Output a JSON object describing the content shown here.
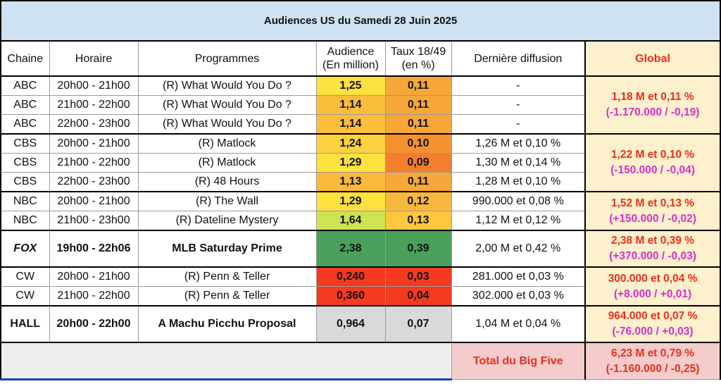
{
  "title": "Audiences US du Samedi 28 Juin 2025",
  "headers": {
    "channel": "Chaine",
    "time": "Horaire",
    "program": "Programmes",
    "audience_line1": "Audience",
    "audience_line2": "(En million)",
    "rate_line1": "Taux 18/49",
    "rate_line2": "(en %)",
    "last": "Dernière diffusion",
    "global": "Global"
  },
  "rows": [
    {
      "channel": "ABC",
      "time": "20h00 - 21h00",
      "program": "(R) What Would You Do ?",
      "audience": "1,25",
      "rate": "0,11",
      "last": "-"
    },
    {
      "channel": "ABC",
      "time": "21h00 - 22h00",
      "program": "(R) What Would You Do ?",
      "audience": "1,14",
      "rate": "0,11",
      "last": "-"
    },
    {
      "channel": "ABC",
      "time": "22h00 - 23h00",
      "program": "(R) What Would You Do ?",
      "audience": "1,14",
      "rate": "0,11",
      "last": "-"
    },
    {
      "channel": "CBS",
      "time": "20h00 - 21h00",
      "program": "(R) Matlock",
      "audience": "1,24",
      "rate": "0,10",
      "last": "1,26 M et 0,10 %"
    },
    {
      "channel": "CBS",
      "time": "21h00 - 22h00",
      "program": "(R) Matlock",
      "audience": "1,29",
      "rate": "0,09",
      "last": "1,30 M et 0,14 %"
    },
    {
      "channel": "CBS",
      "time": "22h00 - 23h00",
      "program": "(R) 48 Hours",
      "audience": "1,13",
      "rate": "0,11",
      "last": "1,28 M et 0,10 %"
    },
    {
      "channel": "NBC",
      "time": "20h00 - 21h00",
      "program": "(R) The Wall",
      "audience": "1,29",
      "rate": "0,12",
      "last": "990.000 et 0,08 %"
    },
    {
      "channel": "NBC",
      "time": "21h00 - 23h00",
      "program": "(R) Dateline Mystery",
      "audience": "1,64",
      "rate": "0,13",
      "last": "1,12 M et 0,12 %"
    },
    {
      "channel": "FOX",
      "time": "19h00 - 22h06",
      "program": "MLB Saturday Prime",
      "audience": "2,38",
      "rate": "0,39",
      "last": "2,00 M et 0,42 %"
    },
    {
      "channel": "CW",
      "time": "20h00 - 21h00",
      "program": "(R) Penn & Teller",
      "audience": "0,240",
      "rate": "0,03",
      "last": "281.000 et 0,03 %"
    },
    {
      "channel": "CW",
      "time": "21h00 - 22h00",
      "program": "(R) Penn & Teller",
      "audience": "0,360",
      "rate": "0,04",
      "last": "302.000 et 0,03 %"
    },
    {
      "channel": "HALL",
      "time": "20h00 - 22h00",
      "program": "A Machu Picchu Proposal",
      "audience": "0,964",
      "rate": "0,07",
      "last": "1,04 M et 0,04 %"
    }
  ],
  "global": {
    "abc": {
      "line1": "1,18 M et 0,11 %",
      "line2": "(-1.170.000 / -0,19)"
    },
    "cbs": {
      "line1": "1,22 M et 0,10 %",
      "line2": "(-150.000 / -0,04)"
    },
    "nbc": {
      "line1": "1,52 M et 0,13 %",
      "line2": "(+150.000 / -0,02)"
    },
    "fox": {
      "line1": "2,38 M et 0,39 %",
      "line2": "(+370.000 / -0,03)"
    },
    "cw": {
      "line1": "300.000 et 0,04 %",
      "line2": "(+8.000 / +0,01)"
    },
    "hall": {
      "line1": "964.000 et 0,07 %",
      "line2": "(-76.000 / +0,03)"
    }
  },
  "total": {
    "label": "Total du Big Five",
    "line1": "6,23 M et 0,79 %",
    "line2": "(-1.160.000 / -0,25)"
  },
  "colors": {
    "title_bg": "#cfe2f3",
    "global_bg": "#fdf0cc",
    "total_bg": "#f4cccc",
    "global_red": "#e8301e",
    "global_magenta": "#d531c8",
    "aud": [
      "#fce13f",
      "#fbbe3c",
      "#fbbe3c",
      "#fbd140",
      "#fce13f",
      "#fbb83c",
      "#fce13f",
      "#cde352",
      "#4aa05a",
      "#f43a1f",
      "#f43a1f",
      "#d9d9d9"
    ],
    "rate": [
      "#f7a73a",
      "#f7a73a",
      "#f7a73a",
      "#f5922f",
      "#f47e2b",
      "#f7a73a",
      "#f9b83c",
      "#fbc73f",
      "#4aa05a",
      "#f43a1f",
      "#f43a1f",
      "#d9d9d9"
    ]
  }
}
